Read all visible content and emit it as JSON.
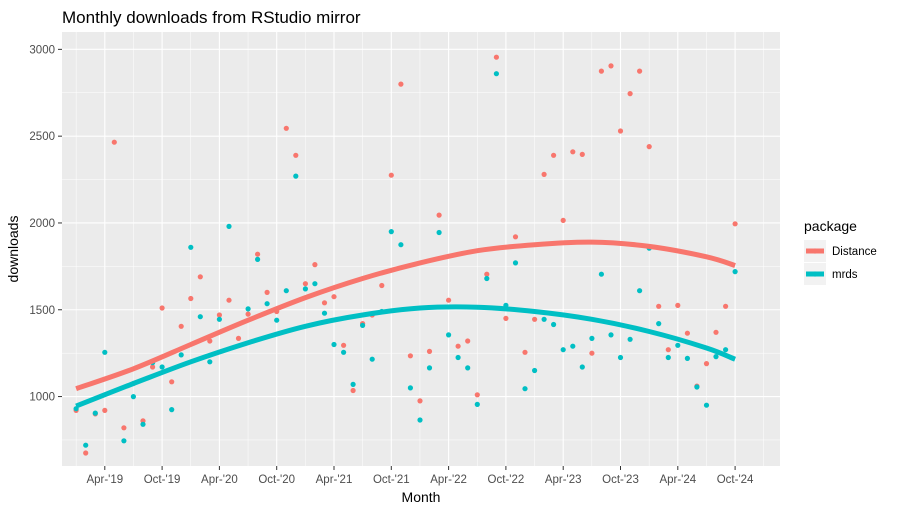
{
  "chart_data": {
    "type": "scatter",
    "title": "Monthly downloads from RStudio mirror",
    "xlabel": "Month",
    "ylabel": "downloads",
    "x_ticks": [
      "Apr-'19",
      "Oct-'19",
      "Apr-'20",
      "Oct-'20",
      "Apr-'21",
      "Oct-'21",
      "Apr-'22",
      "Oct-'22",
      "Apr-'23",
      "Oct-'23",
      "Apr-'24",
      "Oct-'24"
    ],
    "y_ticks": [
      "1000",
      "1500",
      "2000",
      "2500",
      "3000"
    ],
    "ylim": [
      600,
      3100
    ],
    "grid": true,
    "legend": {
      "title": "package",
      "placement": "right"
    },
    "series": [
      {
        "name": "Distance",
        "color": "#F8766D",
        "points": [
          {
            "x": "2019-01",
            "y": 920
          },
          {
            "x": "2019-02",
            "y": 675
          },
          {
            "x": "2019-03",
            "y": 900
          },
          {
            "x": "2019-04",
            "y": 920
          },
          {
            "x": "2019-05",
            "y": 2465
          },
          {
            "x": "2019-06",
            "y": 820
          },
          {
            "x": "2019-07",
            "y": 1075
          },
          {
            "x": "2019-08",
            "y": 860
          },
          {
            "x": "2019-09",
            "y": 1170
          },
          {
            "x": "2019-10",
            "y": 1510
          },
          {
            "x": "2019-11",
            "y": 1085
          },
          {
            "x": "2019-12",
            "y": 1405
          },
          {
            "x": "2020-01",
            "y": 1565
          },
          {
            "x": "2020-02",
            "y": 1690
          },
          {
            "x": "2020-03",
            "y": 1320
          },
          {
            "x": "2020-04",
            "y": 1470
          },
          {
            "x": "2020-05",
            "y": 1555
          },
          {
            "x": "2020-06",
            "y": 1335
          },
          {
            "x": "2020-07",
            "y": 1475
          },
          {
            "x": "2020-08",
            "y": 1820
          },
          {
            "x": "2020-09",
            "y": 1600
          },
          {
            "x": "2020-10",
            "y": 1490
          },
          {
            "x": "2020-11",
            "y": 2545
          },
          {
            "x": "2020-12",
            "y": 2390
          },
          {
            "x": "2021-01",
            "y": 1650
          },
          {
            "x": "2021-02",
            "y": 1760
          },
          {
            "x": "2021-03",
            "y": 1540
          },
          {
            "x": "2021-04",
            "y": 1575
          },
          {
            "x": "2021-05",
            "y": 1295
          },
          {
            "x": "2021-06",
            "y": 1035
          },
          {
            "x": "2021-07",
            "y": 1420
          },
          {
            "x": "2021-08",
            "y": 1470
          },
          {
            "x": "2021-09",
            "y": 1640
          },
          {
            "x": "2021-10",
            "y": 2275
          },
          {
            "x": "2021-11",
            "y": 2800
          },
          {
            "x": "2021-12",
            "y": 1235
          },
          {
            "x": "2022-01",
            "y": 975
          },
          {
            "x": "2022-02",
            "y": 1260
          },
          {
            "x": "2022-03",
            "y": 2045
          },
          {
            "x": "2022-04",
            "y": 1555
          },
          {
            "x": "2022-05",
            "y": 1290
          },
          {
            "x": "2022-06",
            "y": 1320
          },
          {
            "x": "2022-07",
            "y": 1010
          },
          {
            "x": "2022-08",
            "y": 1705
          },
          {
            "x": "2022-09",
            "y": 2955
          },
          {
            "x": "2022-10",
            "y": 1450
          },
          {
            "x": "2022-11",
            "y": 1920
          },
          {
            "x": "2022-12",
            "y": 1255
          },
          {
            "x": "2023-01",
            "y": 1445
          },
          {
            "x": "2023-02",
            "y": 2280
          },
          {
            "x": "2023-03",
            "y": 2390
          },
          {
            "x": "2023-04",
            "y": 2015
          },
          {
            "x": "2023-05",
            "y": 2410
          },
          {
            "x": "2023-06",
            "y": 2395
          },
          {
            "x": "2023-07",
            "y": 1250
          },
          {
            "x": "2023-08",
            "y": 2875
          },
          {
            "x": "2023-09",
            "y": 2905
          },
          {
            "x": "2023-10",
            "y": 2530
          },
          {
            "x": "2023-11",
            "y": 2745
          },
          {
            "x": "2023-12",
            "y": 2875
          },
          {
            "x": "2024-01",
            "y": 2440
          },
          {
            "x": "2024-02",
            "y": 1520
          },
          {
            "x": "2024-03",
            "y": 1270
          },
          {
            "x": "2024-04",
            "y": 1525
          },
          {
            "x": "2024-05",
            "y": 1365
          },
          {
            "x": "2024-06",
            "y": 1060
          },
          {
            "x": "2024-07",
            "y": 1190
          },
          {
            "x": "2024-08",
            "y": 1370
          },
          {
            "x": "2024-09",
            "y": 1520
          },
          {
            "x": "2024-10",
            "y": 1995
          }
        ],
        "trend": [
          {
            "x": "2019-01",
            "y": 1045
          },
          {
            "x": "2019-07",
            "y": 1160
          },
          {
            "x": "2020-01",
            "y": 1300
          },
          {
            "x": "2020-07",
            "y": 1440
          },
          {
            "x": "2021-01",
            "y": 1570
          },
          {
            "x": "2021-07",
            "y": 1680
          },
          {
            "x": "2022-01",
            "y": 1770
          },
          {
            "x": "2022-07",
            "y": 1840
          },
          {
            "x": "2023-01",
            "y": 1875
          },
          {
            "x": "2023-07",
            "y": 1890
          },
          {
            "x": "2024-01",
            "y": 1865
          },
          {
            "x": "2024-07",
            "y": 1805
          },
          {
            "x": "2024-10",
            "y": 1755
          }
        ]
      },
      {
        "name": "mrds",
        "color": "#00BFC4",
        "points": [
          {
            "x": "2019-01",
            "y": 930
          },
          {
            "x": "2019-02",
            "y": 720
          },
          {
            "x": "2019-03",
            "y": 905
          },
          {
            "x": "2019-04",
            "y": 1255
          },
          {
            "x": "2019-06",
            "y": 745
          },
          {
            "x": "2019-07",
            "y": 1000
          },
          {
            "x": "2019-08",
            "y": 840
          },
          {
            "x": "2019-09",
            "y": 1195
          },
          {
            "x": "2019-10",
            "y": 1170
          },
          {
            "x": "2019-11",
            "y": 925
          },
          {
            "x": "2019-12",
            "y": 1240
          },
          {
            "x": "2020-01",
            "y": 1860
          },
          {
            "x": "2020-02",
            "y": 1460
          },
          {
            "x": "2020-03",
            "y": 1200
          },
          {
            "x": "2020-04",
            "y": 1445
          },
          {
            "x": "2020-05",
            "y": 1980
          },
          {
            "x": "2020-07",
            "y": 1505
          },
          {
            "x": "2020-08",
            "y": 1790
          },
          {
            "x": "2020-09",
            "y": 1535
          },
          {
            "x": "2020-10",
            "y": 1440
          },
          {
            "x": "2020-11",
            "y": 1610
          },
          {
            "x": "2020-12",
            "y": 2270
          },
          {
            "x": "2021-01",
            "y": 1620
          },
          {
            "x": "2021-02",
            "y": 1650
          },
          {
            "x": "2021-03",
            "y": 1480
          },
          {
            "x": "2021-04",
            "y": 1300
          },
          {
            "x": "2021-05",
            "y": 1255
          },
          {
            "x": "2021-06",
            "y": 1070
          },
          {
            "x": "2021-07",
            "y": 1410
          },
          {
            "x": "2021-08",
            "y": 1215
          },
          {
            "x": "2021-09",
            "y": 1490
          },
          {
            "x": "2021-10",
            "y": 1950
          },
          {
            "x": "2021-11",
            "y": 1875
          },
          {
            "x": "2021-12",
            "y": 1050
          },
          {
            "x": "2022-01",
            "y": 865
          },
          {
            "x": "2022-02",
            "y": 1165
          },
          {
            "x": "2022-03",
            "y": 1945
          },
          {
            "x": "2022-04",
            "y": 1355
          },
          {
            "x": "2022-05",
            "y": 1225
          },
          {
            "x": "2022-06",
            "y": 1165
          },
          {
            "x": "2022-07",
            "y": 955
          },
          {
            "x": "2022-08",
            "y": 1680
          },
          {
            "x": "2022-09",
            "y": 2860
          },
          {
            "x": "2022-10",
            "y": 1525
          },
          {
            "x": "2022-11",
            "y": 1770
          },
          {
            "x": "2022-12",
            "y": 1045
          },
          {
            "x": "2023-01",
            "y": 1150
          },
          {
            "x": "2023-02",
            "y": 1445
          },
          {
            "x": "2023-03",
            "y": 1415
          },
          {
            "x": "2023-04",
            "y": 1270
          },
          {
            "x": "2023-05",
            "y": 1290
          },
          {
            "x": "2023-06",
            "y": 1170
          },
          {
            "x": "2023-07",
            "y": 1335
          },
          {
            "x": "2023-08",
            "y": 1705
          },
          {
            "x": "2023-09",
            "y": 1355
          },
          {
            "x": "2023-10",
            "y": 1225
          },
          {
            "x": "2023-11",
            "y": 1330
          },
          {
            "x": "2023-12",
            "y": 1610
          },
          {
            "x": "2024-01",
            "y": 1855
          },
          {
            "x": "2024-02",
            "y": 1420
          },
          {
            "x": "2024-03",
            "y": 1225
          },
          {
            "x": "2024-04",
            "y": 1295
          },
          {
            "x": "2024-05",
            "y": 1220
          },
          {
            "x": "2024-06",
            "y": 1055
          },
          {
            "x": "2024-07",
            "y": 950
          },
          {
            "x": "2024-08",
            "y": 1230
          },
          {
            "x": "2024-09",
            "y": 1270
          },
          {
            "x": "2024-10",
            "y": 1720
          }
        ],
        "trend": [
          {
            "x": "2019-01",
            "y": 945
          },
          {
            "x": "2019-07",
            "y": 1075
          },
          {
            "x": "2020-01",
            "y": 1200
          },
          {
            "x": "2020-07",
            "y": 1310
          },
          {
            "x": "2021-01",
            "y": 1405
          },
          {
            "x": "2021-07",
            "y": 1470
          },
          {
            "x": "2022-01",
            "y": 1510
          },
          {
            "x": "2022-07",
            "y": 1515
          },
          {
            "x": "2023-01",
            "y": 1490
          },
          {
            "x": "2023-07",
            "y": 1445
          },
          {
            "x": "2024-01",
            "y": 1375
          },
          {
            "x": "2024-07",
            "y": 1280
          },
          {
            "x": "2024-10",
            "y": 1215
          }
        ]
      }
    ]
  }
}
